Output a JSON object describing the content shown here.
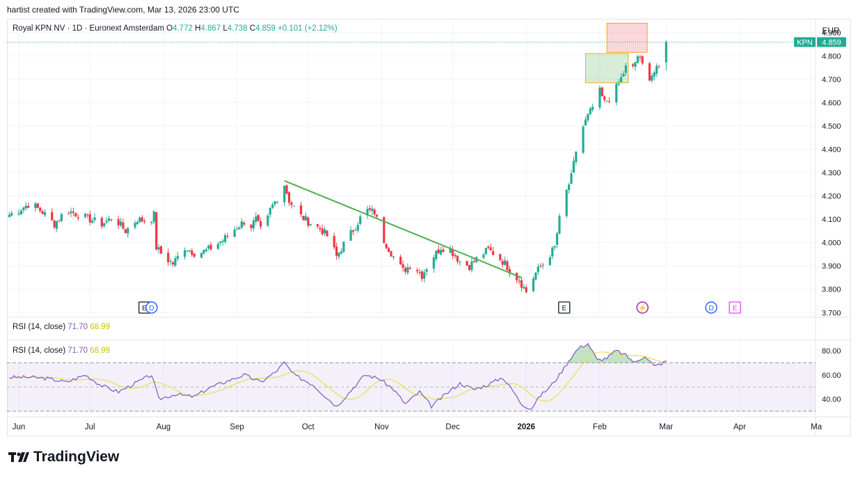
{
  "header": {
    "created_text": "hartist created with TradingView.com, Mar 13, 2026 23:00 UTC"
  },
  "legend": {
    "symbol": "Royal KPN NV · 1D · Euronext Amsterdam",
    "o_label": "O",
    "o": "4.772",
    "h_label": "H",
    "h": "4.867",
    "l_label": "L",
    "l": "4.738",
    "c_label": "C",
    "c": "4.859",
    "change": "+0.101 (+2.12%)"
  },
  "currency": "EUR",
  "price_tag": {
    "ticker": "KPN",
    "value": "4.859"
  },
  "rsi_legends": [
    {
      "label": "RSI (14, close)",
      "v1": "71.70",
      "v2": "68.99"
    },
    {
      "label": "RSI (14, close)",
      "v1": "71.70",
      "v2": "68.99"
    }
  ],
  "brand": {
    "name": "TradingView"
  },
  "colors": {
    "up": "#22ab94",
    "down": "#f23645",
    "trend": "#4caf50",
    "rsi": "#7e57c2",
    "rsi_ma": "#e6e35a"
  },
  "chart_data": {
    "type": "candlestick",
    "title": "Royal KPN NV · 1D · Euronext Amsterdam",
    "price_axis": {
      "ticks": [
        "4.900",
        "4.800",
        "4.700",
        "4.600",
        "4.500",
        "4.400",
        "4.300",
        "4.200",
        "4.100",
        "4.000",
        "3.900",
        "3.800",
        "3.700"
      ],
      "range": [
        3.68,
        4.95
      ]
    },
    "x_ticks": [
      "Jun",
      "Jul",
      "Aug",
      "Sep",
      "Oct",
      "Nov",
      "Dec",
      "2026",
      "Feb",
      "Mar",
      "Apr",
      "Ma"
    ],
    "x_tick_days": [
      0,
      30,
      61,
      92,
      122,
      153,
      183,
      214,
      245,
      273,
      304,
      334
    ],
    "x_range_days": [
      -5,
      336
    ],
    "anchors": [
      [
        -4,
        4.12
      ],
      [
        0,
        4.14
      ],
      [
        5,
        4.17
      ],
      [
        10,
        4.13
      ],
      [
        15,
        4.08
      ],
      [
        20,
        4.14
      ],
      [
        25,
        4.12
      ],
      [
        30,
        4.1
      ],
      [
        35,
        4.08
      ],
      [
        40,
        4.11
      ],
      [
        45,
        4.05
      ],
      [
        50,
        4.1
      ],
      [
        55,
        4.09
      ],
      [
        57,
        4.12
      ],
      [
        58,
        3.98
      ],
      [
        61,
        3.94
      ],
      [
        65,
        3.91
      ],
      [
        70,
        3.98
      ],
      [
        75,
        3.95
      ],
      [
        80,
        3.97
      ],
      [
        86,
        4.01
      ],
      [
        90,
        4.05
      ],
      [
        95,
        4.09
      ],
      [
        98,
        4.07
      ],
      [
        100,
        4.1
      ],
      [
        103,
        4.03
      ],
      [
        106,
        4.14
      ],
      [
        110,
        4.21
      ],
      [
        112,
        4.25
      ],
      [
        114,
        4.18
      ],
      [
        118,
        4.12
      ],
      [
        122,
        4.09
      ],
      [
        127,
        4.06
      ],
      [
        131,
        4.02
      ],
      [
        134,
        3.94
      ],
      [
        138,
        4.01
      ],
      [
        142,
        4.07
      ],
      [
        146,
        4.14
      ],
      [
        150,
        4.13
      ],
      [
        154,
        4.01
      ],
      [
        158,
        3.94
      ],
      [
        162,
        3.88
      ],
      [
        166,
        3.91
      ],
      [
        170,
        3.86
      ],
      [
        174,
        3.93
      ],
      [
        178,
        3.98
      ],
      [
        182,
        3.97
      ],
      [
        186,
        3.92
      ],
      [
        190,
        3.9
      ],
      [
        194,
        3.94
      ],
      [
        198,
        3.97
      ],
      [
        202,
        3.94
      ],
      [
        205,
        3.91
      ],
      [
        208,
        3.87
      ],
      [
        211,
        3.84
      ],
      [
        214,
        3.79
      ],
      [
        218,
        3.87
      ],
      [
        222,
        3.92
      ],
      [
        226,
        3.98
      ],
      [
        228,
        4.1
      ],
      [
        230,
        4.19
      ],
      [
        233,
        4.28
      ],
      [
        236,
        4.45
      ],
      [
        239,
        4.52
      ],
      [
        242,
        4.58
      ],
      [
        244,
        4.67
      ],
      [
        247,
        4.6
      ],
      [
        250,
        4.63
      ],
      [
        253,
        4.68
      ],
      [
        256,
        4.75
      ],
      [
        258,
        4.72
      ],
      [
        261,
        4.8
      ],
      [
        263,
        4.76
      ],
      [
        266,
        4.71
      ],
      [
        269,
        4.74
      ],
      [
        272,
        4.77
      ],
      [
        273,
        4.86
      ]
    ],
    "rsi": {
      "label": "RSI (14, close)",
      "value": 71.7,
      "ma": 68.99,
      "ticks": [
        "80.00",
        "60.00",
        "40.00"
      ],
      "bands": [
        70,
        50,
        30
      ],
      "range": [
        26,
        88
      ],
      "anchors": [
        [
          -4,
          58
        ],
        [
          5,
          58
        ],
        [
          12,
          57
        ],
        [
          20,
          54
        ],
        [
          28,
          60
        ],
        [
          35,
          51
        ],
        [
          42,
          46
        ],
        [
          50,
          54
        ],
        [
          56,
          60
        ],
        [
          59,
          40
        ],
        [
          66,
          44
        ],
        [
          74,
          42
        ],
        [
          80,
          49
        ],
        [
          88,
          55
        ],
        [
          95,
          60
        ],
        [
          102,
          54
        ],
        [
          108,
          62
        ],
        [
          112,
          70
        ],
        [
          116,
          60
        ],
        [
          124,
          52
        ],
        [
          130,
          41
        ],
        [
          134,
          34
        ],
        [
          140,
          47
        ],
        [
          146,
          60
        ],
        [
          152,
          57
        ],
        [
          158,
          48
        ],
        [
          163,
          36
        ],
        [
          169,
          46
        ],
        [
          174,
          34
        ],
        [
          180,
          44
        ],
        [
          186,
          53
        ],
        [
          192,
          48
        ],
        [
          198,
          52
        ],
        [
          204,
          58
        ],
        [
          208,
          48
        ],
        [
          212,
          36
        ],
        [
          216,
          32
        ],
        [
          220,
          43
        ],
        [
          224,
          50
        ],
        [
          228,
          60
        ],
        [
          232,
          72
        ],
        [
          236,
          82
        ],
        [
          240,
          86
        ],
        [
          244,
          72
        ],
        [
          248,
          74
        ],
        [
          252,
          80
        ],
        [
          256,
          76
        ],
        [
          260,
          70
        ],
        [
          264,
          76
        ],
        [
          268,
          67
        ],
        [
          272,
          70
        ],
        [
          273,
          72
        ]
      ]
    },
    "trendline": [
      [
        112,
        4.265
      ],
      [
        212,
        3.85
      ]
    ],
    "zones": [
      {
        "kind": "target",
        "days": [
          248,
          265
        ],
        "prices": [
          4.815,
          4.94
        ]
      },
      {
        "kind": "entry",
        "days": [
          239,
          257
        ],
        "prices": [
          4.685,
          4.81
        ]
      }
    ],
    "event_markers": [
      {
        "label": "E",
        "day": 53,
        "style": "square"
      },
      {
        "label": "D",
        "day": 56,
        "style": "circle-blue"
      },
      {
        "label": "E",
        "day": 230,
        "style": "square"
      },
      {
        "label": "⚡",
        "day": 263,
        "style": "circle-purple"
      },
      {
        "label": "D",
        "day": 292,
        "style": "circle-blue"
      },
      {
        "label": "E",
        "day": 302,
        "style": "square-pink"
      }
    ]
  }
}
